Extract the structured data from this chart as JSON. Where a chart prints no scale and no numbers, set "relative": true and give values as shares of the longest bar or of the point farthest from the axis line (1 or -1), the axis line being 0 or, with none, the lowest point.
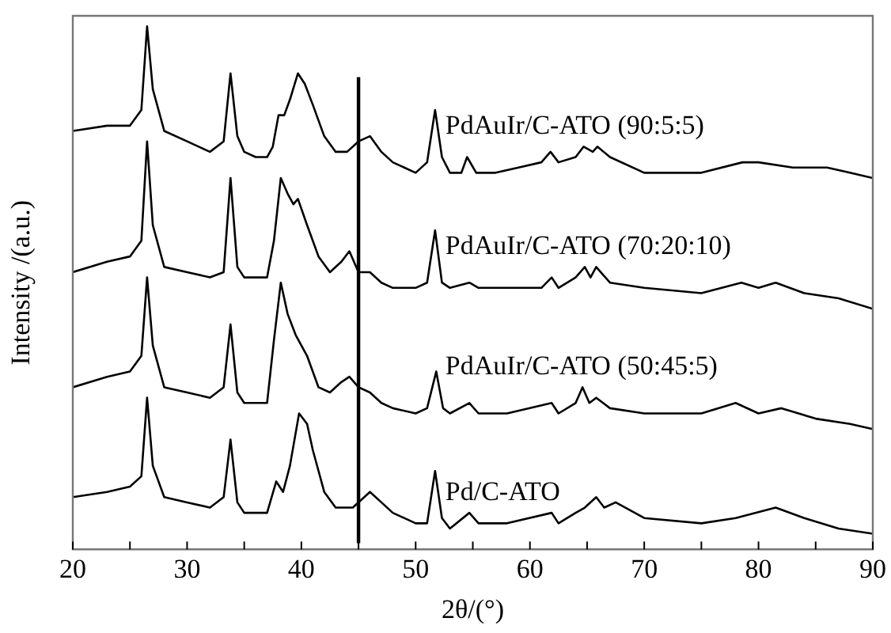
{
  "chart_data": {
    "type": "line",
    "xlabel": "2θ/(°)",
    "ylabel": "Intensity /(a.u.)",
    "relative": true,
    "xlim": [
      20,
      90
    ],
    "xticks": [
      20,
      {
        "value": 25,
        "label": null
      },
      30,
      {
        "value": 35,
        "label": null
      },
      40,
      {
        "value": 45,
        "label": null
      },
      50,
      {
        "value": 55,
        "label": null
      },
      60,
      {
        "value": 65,
        "label": null
      },
      70,
      {
        "value": 75,
        "label": null
      },
      80,
      {
        "value": 85,
        "label": null
      },
      90
    ],
    "grid": false,
    "legend": false,
    "marker": "none",
    "line_style": "solid",
    "ref_lines": [
      {
        "axis": "x",
        "value": 45,
        "color": "#000000"
      }
    ],
    "series": [
      {
        "name": "PdAuIr/C-ATO (90:5:5)",
        "color": "#000000",
        "x": [
          20,
          23,
          25,
          26,
          26.5,
          27,
          28,
          30,
          32,
          33.2,
          33.8,
          34.4,
          35,
          36,
          37,
          37.5,
          38,
          38.5,
          39,
          39.7,
          40.3,
          41,
          42,
          43,
          44,
          45,
          46,
          47,
          48,
          49,
          50,
          51,
          51.7,
          52.3,
          53,
          54,
          54.5,
          55.3,
          57,
          59,
          61,
          61.8,
          62.5,
          64,
          64.7,
          65.5,
          65.9,
          67,
          70,
          75,
          78.6,
          80,
          83,
          86,
          88,
          90
        ],
        "values": [
          0.8,
          0.81,
          0.81,
          0.84,
          1.0,
          0.88,
          0.8,
          0.78,
          0.76,
          0.78,
          0.91,
          0.79,
          0.76,
          0.75,
          0.75,
          0.77,
          0.83,
          0.83,
          0.86,
          0.91,
          0.89,
          0.85,
          0.79,
          0.76,
          0.76,
          0.78,
          0.79,
          0.76,
          0.74,
          0.73,
          0.72,
          0.74,
          0.84,
          0.75,
          0.72,
          0.72,
          0.75,
          0.72,
          0.72,
          0.73,
          0.74,
          0.76,
          0.74,
          0.75,
          0.77,
          0.76,
          0.77,
          0.75,
          0.72,
          0.72,
          0.74,
          0.74,
          0.73,
          0.73,
          0.72,
          0.71
        ]
      },
      {
        "name": "PdAuIr/C-ATO (70:20:10)",
        "color": "#000000",
        "x": [
          20,
          23,
          25,
          26,
          26.5,
          27,
          28,
          30,
          32,
          33.2,
          33.8,
          34.4,
          35,
          37,
          37.6,
          38.2,
          38.8,
          39.3,
          39.7,
          40.5,
          41.5,
          42.5,
          43.5,
          44.2,
          45,
          46,
          47,
          48,
          50,
          51,
          51.7,
          52.3,
          53,
          54.7,
          55.5,
          58,
          61,
          61.9,
          62.5,
          64,
          64.8,
          65.3,
          65.8,
          67,
          70,
          75,
          78.5,
          80,
          81.5,
          84,
          87,
          90
        ],
        "values": [
          0.53,
          0.55,
          0.56,
          0.59,
          0.78,
          0.62,
          0.54,
          0.53,
          0.52,
          0.53,
          0.71,
          0.54,
          0.52,
          0.52,
          0.59,
          0.71,
          0.68,
          0.66,
          0.67,
          0.62,
          0.56,
          0.53,
          0.55,
          0.57,
          0.53,
          0.53,
          0.51,
          0.5,
          0.5,
          0.51,
          0.61,
          0.51,
          0.5,
          0.51,
          0.5,
          0.5,
          0.5,
          0.52,
          0.5,
          0.52,
          0.54,
          0.52,
          0.54,
          0.51,
          0.5,
          0.49,
          0.51,
          0.5,
          0.51,
          0.49,
          0.48,
          0.46
        ]
      },
      {
        "name": "PdAuIr/C-ATO (50:45:5)",
        "color": "#000000",
        "x": [
          20,
          23,
          25,
          26,
          26.5,
          27,
          28,
          30,
          32,
          33.2,
          33.8,
          34.4,
          35,
          37,
          37.6,
          38.2,
          38.8,
          39.5,
          40.5,
          41.5,
          42.5,
          43.5,
          44.2,
          45,
          46,
          47,
          48,
          50,
          51,
          51.8,
          52.4,
          53,
          54.7,
          55.5,
          58,
          61.9,
          62.5,
          64,
          64.6,
          65.2,
          65.8,
          67,
          70,
          75,
          78,
          80,
          82,
          85,
          88,
          90
        ],
        "values": [
          0.31,
          0.33,
          0.34,
          0.37,
          0.52,
          0.39,
          0.31,
          0.3,
          0.29,
          0.31,
          0.43,
          0.3,
          0.28,
          0.28,
          0.4,
          0.51,
          0.45,
          0.41,
          0.37,
          0.31,
          0.3,
          0.32,
          0.33,
          0.31,
          0.3,
          0.28,
          0.27,
          0.26,
          0.27,
          0.34,
          0.27,
          0.26,
          0.28,
          0.26,
          0.26,
          0.28,
          0.26,
          0.28,
          0.31,
          0.28,
          0.29,
          0.27,
          0.26,
          0.26,
          0.28,
          0.26,
          0.27,
          0.25,
          0.24,
          0.23
        ]
      },
      {
        "name": "Pd/C-ATO",
        "color": "#000000",
        "x": [
          20,
          23,
          25,
          26,
          26.5,
          27,
          28,
          30,
          32,
          33.2,
          33.8,
          34.4,
          35,
          37,
          37.8,
          38.4,
          39,
          39.8,
          40.5,
          41,
          42,
          43,
          44.5,
          46,
          47,
          48,
          50,
          51,
          51.7,
          52.3,
          53,
          54.7,
          55.5,
          58,
          61.9,
          62.5,
          64,
          64.8,
          65.8,
          66.5,
          67.5,
          70,
          75,
          78,
          81.5,
          84,
          87,
          90
        ],
        "values": [
          0.1,
          0.11,
          0.12,
          0.14,
          0.29,
          0.16,
          0.1,
          0.09,
          0.08,
          0.1,
          0.21,
          0.09,
          0.07,
          0.07,
          0.13,
          0.11,
          0.16,
          0.26,
          0.24,
          0.19,
          0.11,
          0.08,
          0.08,
          0.11,
          0.09,
          0.07,
          0.05,
          0.05,
          0.15,
          0.06,
          0.04,
          0.07,
          0.05,
          0.05,
          0.07,
          0.05,
          0.07,
          0.08,
          0.1,
          0.08,
          0.09,
          0.06,
          0.05,
          0.06,
          0.08,
          0.06,
          0.04,
          0.03
        ]
      }
    ]
  }
}
